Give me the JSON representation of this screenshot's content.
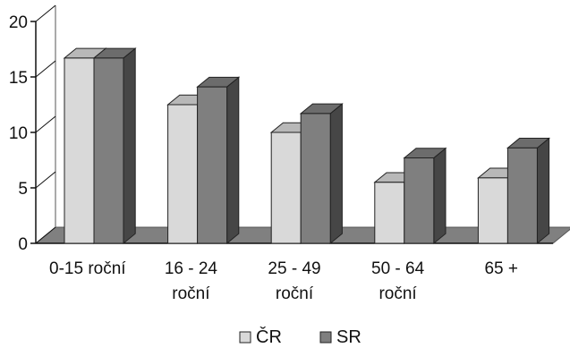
{
  "chart_data": {
    "type": "bar",
    "title": "",
    "xlabel": "",
    "ylabel": "",
    "categories": [
      [
        "0-15 roční"
      ],
      [
        "16 - 24",
        "roční"
      ],
      [
        "25 - 49",
        "roční"
      ],
      [
        "50 - 64",
        "roční"
      ],
      [
        "65 +"
      ]
    ],
    "series": [
      {
        "name": "ČR",
        "values": [
          16.7,
          12.5,
          10.0,
          5.5,
          5.9
        ],
        "color": "#d9d9d9"
      },
      {
        "name": "SR",
        "values": [
          16.7,
          14.1,
          11.7,
          7.7,
          8.6
        ],
        "color": "#7f7f7f"
      }
    ],
    "ylim": [
      0,
      20
    ],
    "y_ticks": [
      0,
      5,
      10,
      15,
      20
    ],
    "legend": "bottom",
    "grid": false,
    "three_d": true
  }
}
